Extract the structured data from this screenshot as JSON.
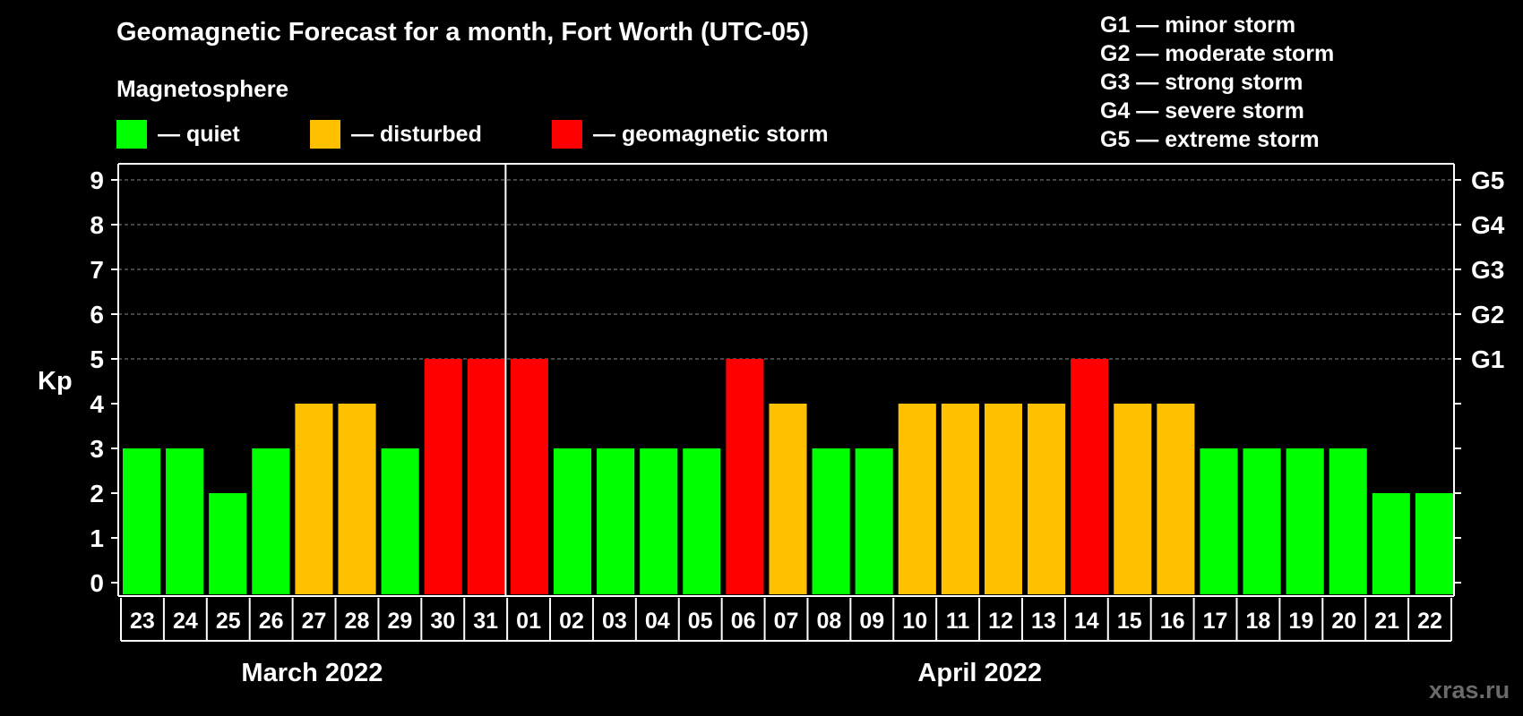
{
  "chart_data": {
    "type": "bar",
    "title": "Geomagnetic Forecast for a month, Fort Worth (UTC-05)",
    "subtitle": "Magnetosphere",
    "ylabel": "Kp",
    "ylim": [
      0,
      9
    ],
    "yticks": [
      "0",
      "1",
      "2",
      "3",
      "4",
      "5",
      "6",
      "7",
      "8",
      "9"
    ],
    "right_axis_labels": [
      {
        "kp": 5,
        "label": "G1"
      },
      {
        "kp": 6,
        "label": "G2"
      },
      {
        "kp": 7,
        "label": "G3"
      },
      {
        "kp": 8,
        "label": "G4"
      },
      {
        "kp": 9,
        "label": "G5"
      }
    ],
    "months": [
      {
        "label": "March 2022",
        "days": 9
      },
      {
        "label": "April 2022",
        "days": 22
      }
    ],
    "categories": [
      "23",
      "24",
      "25",
      "26",
      "27",
      "28",
      "29",
      "30",
      "31",
      "01",
      "02",
      "03",
      "04",
      "05",
      "06",
      "07",
      "08",
      "09",
      "10",
      "11",
      "12",
      "13",
      "14",
      "15",
      "16",
      "17",
      "18",
      "19",
      "20",
      "21",
      "22"
    ],
    "values": [
      3,
      3,
      2,
      3,
      4,
      4,
      3,
      5,
      5,
      5,
      3,
      3,
      3,
      3,
      5,
      4,
      3,
      3,
      4,
      4,
      4,
      4,
      5,
      4,
      4,
      3,
      3,
      3,
      3,
      2,
      2
    ],
    "legend": [
      {
        "label": "— quiet",
        "color": "#00ff00"
      },
      {
        "label": "— disturbed",
        "color": "#ffc000"
      },
      {
        "label": "— geomagnetic storm",
        "color": "#ff0000"
      }
    ],
    "storm_scale": [
      "G1 — minor storm",
      "G2 — moderate storm",
      "G3 — strong storm",
      "G4 — severe storm",
      "G5 — extreme storm"
    ],
    "grid": true
  },
  "watermark": "xras.ru"
}
